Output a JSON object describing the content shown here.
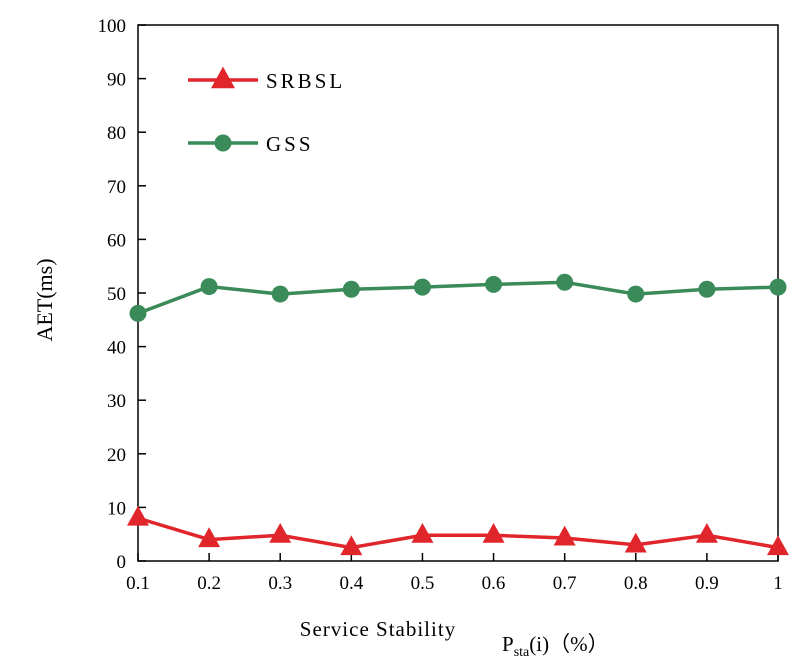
{
  "chart_data": {
    "type": "line",
    "xlabel": "Service Stability",
    "xlabel_unit": {
      "main": "P",
      "sub": "sta",
      "rest": "(i)（%）"
    },
    "ylabel": "AET(ms)",
    "x": [
      0.1,
      0.2,
      0.3,
      0.4,
      0.5,
      0.6,
      0.7,
      0.8,
      0.9,
      1.0
    ],
    "x_tick_labels": [
      "0.1",
      "0.2",
      "0.3",
      "0.4",
      "0.5",
      "0.6",
      "0.7",
      "0.8",
      "0.9",
      "1"
    ],
    "ylim": [
      0,
      100
    ],
    "y_ticks": [
      0,
      10,
      20,
      30,
      40,
      50,
      60,
      70,
      80,
      90,
      100
    ],
    "grid": false,
    "legend_position": "top-left",
    "series": [
      {
        "name": "SRBSL",
        "marker": "triangle",
        "color": "#e0262a",
        "values": [
          8.0,
          4.0,
          4.8,
          2.5,
          4.8,
          4.8,
          4.3,
          3.0,
          4.8,
          2.5
        ]
      },
      {
        "name": "GSS",
        "marker": "circle",
        "color": "#3a8a5a",
        "values": [
          46.2,
          51.2,
          49.8,
          50.7,
          51.1,
          51.6,
          52.0,
          49.8,
          50.7,
          51.1
        ]
      }
    ]
  }
}
